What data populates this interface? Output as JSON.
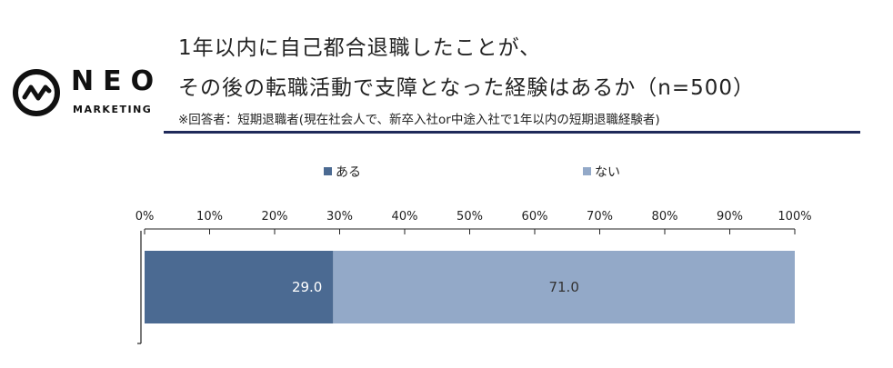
{
  "logo": {
    "word": "NEO",
    "sub": "MARKETING"
  },
  "title_line1": "1年以内に自己都合退職したことが、",
  "title_line2": "その後の転職活動で支障となった経験はあるか（n=500）",
  "note": "※回答者：短期退職者(現在社会人で、新卒入社or中途入社で1年以内の短期退職経験者)",
  "colors": {
    "aru": "#4b6a92",
    "nai": "#93a9c8",
    "rule": "#1f2a5a"
  },
  "chart_data": {
    "type": "bar",
    "orientation": "horizontal-stacked-100",
    "xlim": [
      0,
      100
    ],
    "xticks": [
      "0%",
      "10%",
      "20%",
      "30%",
      "40%",
      "50%",
      "60%",
      "70%",
      "80%",
      "90%",
      "100%"
    ],
    "legend_position": "top",
    "series": [
      {
        "name": "ある",
        "values": [
          29.0
        ],
        "label": "29.0"
      },
      {
        "name": "ない",
        "values": [
          71.0
        ],
        "label": "71.0"
      }
    ]
  }
}
